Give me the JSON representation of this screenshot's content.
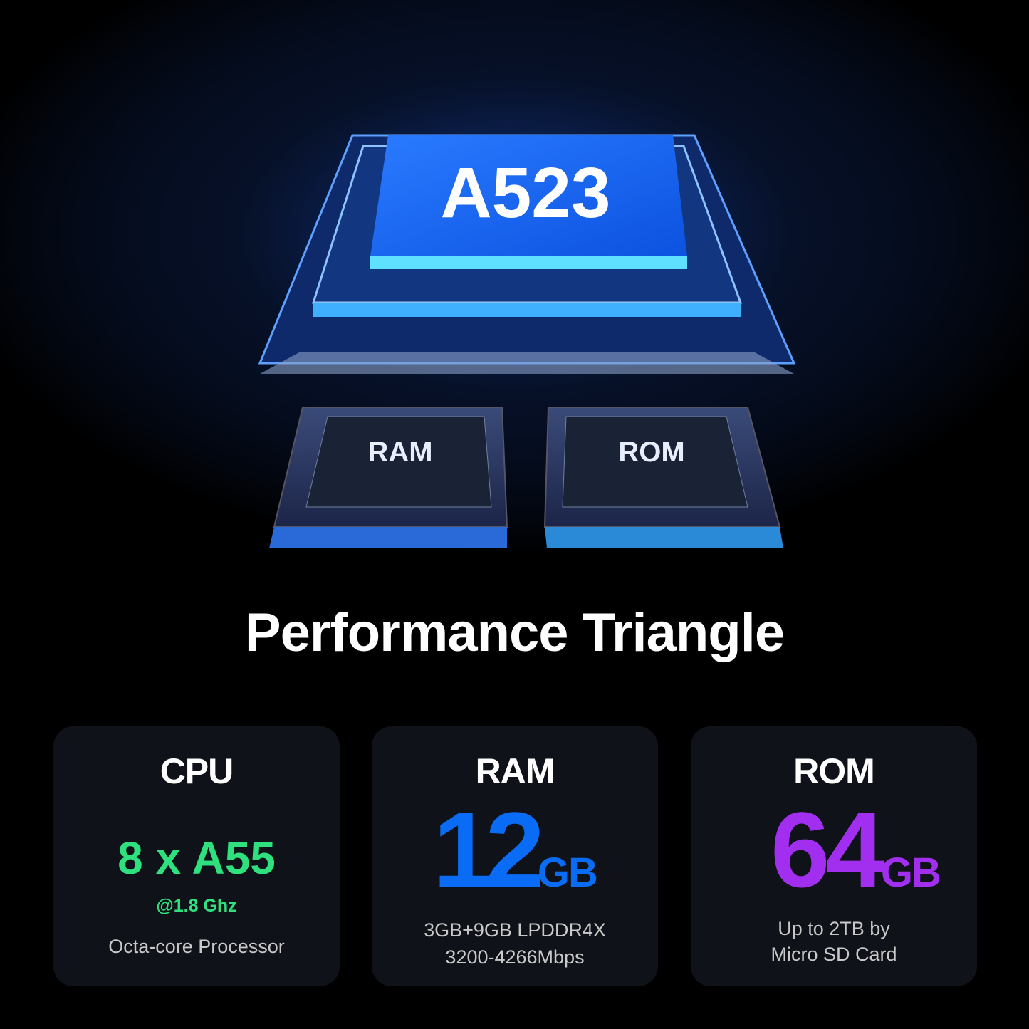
{
  "hero": {
    "chip_label": "A523",
    "ram_chip_label": "RAM",
    "rom_chip_label": "ROM"
  },
  "title": "Performance Triangle",
  "colors": {
    "cpu_accent": "#2fe07f",
    "ram_accent": "#0a6cf5",
    "rom_accent": "#a22ff0",
    "card_bg": "#0f1218"
  },
  "cards": [
    {
      "heading": "CPU",
      "value": "8 x A55",
      "detail": "@1.8 Ghz",
      "description": "Octa-core Processor"
    },
    {
      "heading": "RAM",
      "value": "12",
      "unit": "GB",
      "line1": "3GB+9GB LPDDR4X",
      "line2": "3200-4266Mbps"
    },
    {
      "heading": "ROM",
      "value": "64",
      "unit": "GB",
      "line1": "Up to 2TB by",
      "line2": "Micro SD Card"
    }
  ]
}
